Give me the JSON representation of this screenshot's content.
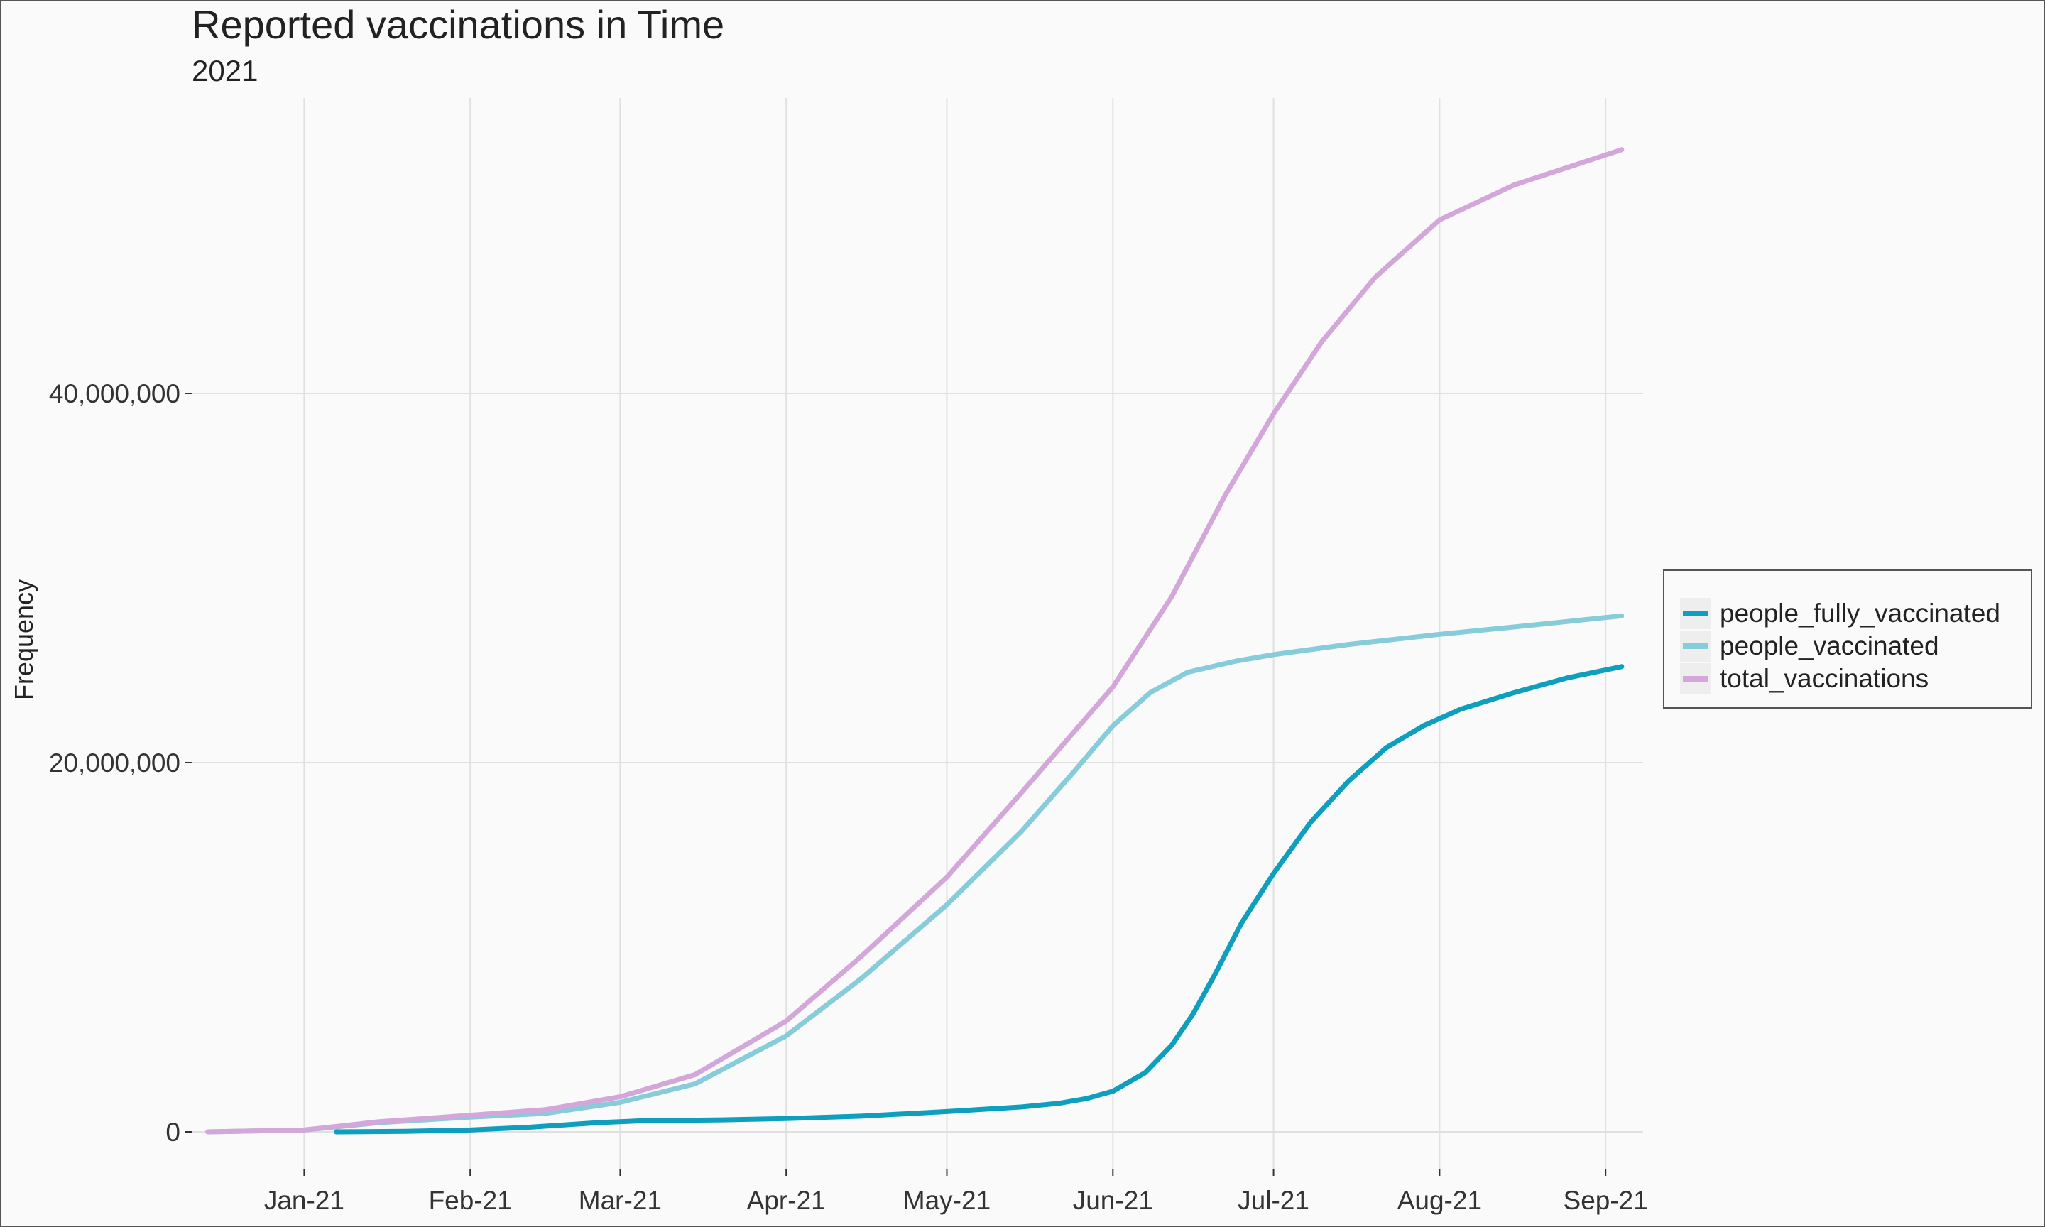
{
  "chart_data": {
    "type": "line",
    "title": "Reported vaccinations in Time",
    "subtitle": "2021",
    "xlabel": "",
    "ylabel": "Frequency",
    "x_ticks": [
      "Jan-21",
      "Feb-21",
      "Mar-21",
      "Apr-21",
      "May-21",
      "Jun-21",
      "Jul-21",
      "Aug-21",
      "Sep-21"
    ],
    "x_tick_dates": [
      "2021-01-01",
      "2021-02-01",
      "2021-03-01",
      "2021-04-01",
      "2021-05-01",
      "2021-06-01",
      "2021-07-01",
      "2021-08-01",
      "2021-09-01"
    ],
    "y_ticks": [
      0,
      20000000,
      40000000
    ],
    "y_tick_labels": [
      "0",
      "20,000,000",
      "40,000,000"
    ],
    "xlim": [
      "2020-12-11",
      "2021-09-08"
    ],
    "ylim": [
      -2000000,
      56000000
    ],
    "grid": true,
    "legend_position": "right",
    "series": [
      {
        "name": "people_fully_vaccinated",
        "color": "#0E9FBE",
        "points": [
          [
            "2021-01-07",
            0
          ],
          [
            "2021-01-20",
            30000
          ],
          [
            "2021-02-01",
            100000
          ],
          [
            "2021-02-12",
            250000
          ],
          [
            "2021-02-25",
            500000
          ],
          [
            "2021-03-05",
            600000
          ],
          [
            "2021-03-20",
            650000
          ],
          [
            "2021-04-01",
            720000
          ],
          [
            "2021-04-15",
            850000
          ],
          [
            "2021-05-01",
            1100000
          ],
          [
            "2021-05-15",
            1350000
          ],
          [
            "2021-05-22",
            1550000
          ],
          [
            "2021-05-27",
            1800000
          ],
          [
            "2021-06-01",
            2200000
          ],
          [
            "2021-06-07",
            3200000
          ],
          [
            "2021-06-12",
            4700000
          ],
          [
            "2021-06-16",
            6400000
          ],
          [
            "2021-06-20",
            8500000
          ],
          [
            "2021-06-25",
            11300000
          ],
          [
            "2021-07-01",
            14000000
          ],
          [
            "2021-07-08",
            16800000
          ],
          [
            "2021-07-15",
            19000000
          ],
          [
            "2021-07-22",
            20800000
          ],
          [
            "2021-07-29",
            22000000
          ],
          [
            "2021-08-05",
            22900000
          ],
          [
            "2021-08-15",
            23800000
          ],
          [
            "2021-08-25",
            24600000
          ],
          [
            "2021-09-04",
            25200000
          ]
        ]
      },
      {
        "name": "people_vaccinated",
        "color": "#86CCDA",
        "points": [
          [
            "2020-12-14",
            0
          ],
          [
            "2021-01-01",
            100000
          ],
          [
            "2021-01-15",
            500000
          ],
          [
            "2021-02-01",
            800000
          ],
          [
            "2021-02-15",
            1000000
          ],
          [
            "2021-03-01",
            1600000
          ],
          [
            "2021-03-15",
            2600000
          ],
          [
            "2021-04-01",
            5200000
          ],
          [
            "2021-04-15",
            8300000
          ],
          [
            "2021-05-01",
            12300000
          ],
          [
            "2021-05-15",
            16300000
          ],
          [
            "2021-05-25",
            19600000
          ],
          [
            "2021-06-01",
            22000000
          ],
          [
            "2021-06-08",
            23800000
          ],
          [
            "2021-06-15",
            24900000
          ],
          [
            "2021-06-24",
            25500000
          ],
          [
            "2021-07-01",
            25850000
          ],
          [
            "2021-07-15",
            26400000
          ],
          [
            "2021-08-01",
            26950000
          ],
          [
            "2021-08-15",
            27350000
          ],
          [
            "2021-09-04",
            27950000
          ]
        ]
      },
      {
        "name": "total_vaccinations",
        "color": "#D3A7DA",
        "points": [
          [
            "2020-12-14",
            0
          ],
          [
            "2021-01-01",
            100000
          ],
          [
            "2021-01-15",
            550000
          ],
          [
            "2021-02-01",
            900000
          ],
          [
            "2021-02-15",
            1200000
          ],
          [
            "2021-03-01",
            1900000
          ],
          [
            "2021-03-15",
            3100000
          ],
          [
            "2021-04-01",
            6000000
          ],
          [
            "2021-04-15",
            9500000
          ],
          [
            "2021-05-01",
            13800000
          ],
          [
            "2021-05-15",
            18400000
          ],
          [
            "2021-06-01",
            24100000
          ],
          [
            "2021-06-12",
            29000000
          ],
          [
            "2021-06-22",
            34500000
          ],
          [
            "2021-07-01",
            38900000
          ],
          [
            "2021-07-10",
            42800000
          ],
          [
            "2021-07-20",
            46300000
          ],
          [
            "2021-08-01",
            49400000
          ],
          [
            "2021-08-15",
            51300000
          ],
          [
            "2021-09-04",
            53200000
          ]
        ]
      }
    ]
  }
}
